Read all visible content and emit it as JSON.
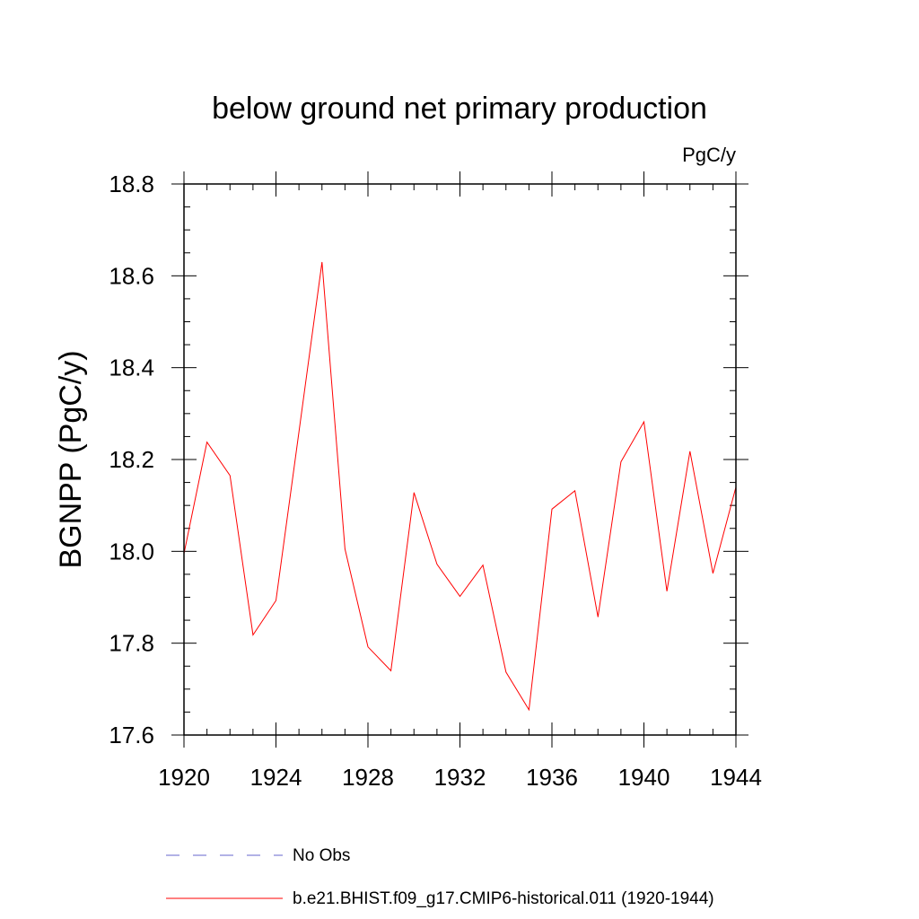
{
  "chart_data": {
    "type": "line",
    "title": "below ground net primary production",
    "units_label": "PgC/y",
    "ylabel": "BGNPP  (PgC/y)",
    "xlabel": "",
    "xlim": [
      1920,
      1944
    ],
    "ylim": [
      17.6,
      18.8
    ],
    "x_ticks": [
      1920,
      1924,
      1928,
      1932,
      1936,
      1940,
      1944
    ],
    "y_ticks": [
      "17.6",
      "17.8",
      "18.0",
      "18.2",
      "18.4",
      "18.6",
      "18.8"
    ],
    "grid": false,
    "legend_position": "bottom",
    "series": [
      {
        "name": "b.e21.BHIST.f09_g17.CMIP6-historical.011 (1920-1944)",
        "color": "#ff0000",
        "style": "solid",
        "x": [
          1920,
          1921,
          1922,
          1923,
          1924,
          1925,
          1926,
          1927,
          1928,
          1929,
          1930,
          1931,
          1932,
          1933,
          1934,
          1935,
          1936,
          1937,
          1938,
          1939,
          1940,
          1941,
          1942,
          1943,
          1944
        ],
        "y": [
          17.995,
          18.238,
          18.165,
          17.818,
          17.893,
          18.26,
          18.63,
          18.005,
          17.792,
          17.74,
          18.128,
          17.972,
          17.902,
          17.97,
          17.737,
          17.655,
          18.092,
          18.132,
          17.857,
          18.195,
          18.282,
          17.913,
          18.218,
          17.952,
          18.14
        ]
      }
    ],
    "legend": [
      {
        "label": "No Obs",
        "color": "#6666cc",
        "style": "dashed"
      },
      {
        "label": "b.e21.BHIST.f09_g17.CMIP6-historical.011 (1920-1944)",
        "color": "#ff0000",
        "style": "solid"
      }
    ]
  }
}
